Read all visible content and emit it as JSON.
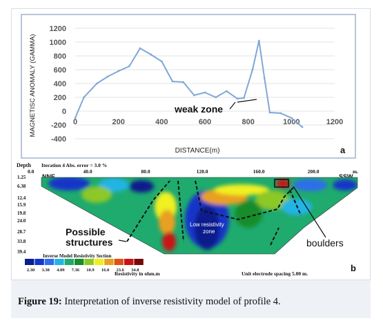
{
  "caption": {
    "label": "Figure 19:",
    "text": " Interpretation of inverse resistivity model of profile 4."
  },
  "chart_data": [
    {
      "type": "line",
      "panel_letter": "a",
      "ylabel": "MAGNETISC ANOMALY (GAMMA)",
      "xlabel": "DISTANCE(m)",
      "xlim": [
        0,
        1200
      ],
      "ylim": [
        -400,
        1200
      ],
      "xticks": [
        0,
        200,
        400,
        600,
        800,
        1000,
        1200
      ],
      "yticks": [
        1200,
        1000,
        800,
        600,
        400,
        200,
        0,
        -200,
        -400
      ],
      "grid": "horizontal",
      "line_color": "#7fa7d8",
      "x": [
        0,
        40,
        100,
        150,
        200,
        250,
        300,
        350,
        400,
        450,
        500,
        550,
        600,
        650,
        700,
        750,
        780,
        820,
        850,
        875,
        900,
        950,
        1000,
        1050
      ],
      "y": [
        -100,
        200,
        400,
        500,
        580,
        650,
        910,
        820,
        720,
        430,
        420,
        230,
        270,
        200,
        290,
        180,
        190,
        600,
        1020,
        480,
        -20,
        -30,
        -100,
        -230
      ],
      "annotations": [
        {
          "text": "weak zone",
          "x": 790,
          "y": 10
        }
      ]
    },
    {
      "type": "heatmap",
      "panel_letter": "b",
      "header_left": "Depth",
      "header_iteration": "Iteration 4 Abs. error = 3.0 %",
      "x_origin": "0.0",
      "x_ticks": [
        "40.0",
        "80.0",
        "120.0",
        "160.0",
        "200.0"
      ],
      "x_unit": "m.",
      "left_end": "NNE",
      "right_end": "SSW",
      "depth_ticks": [
        "1.25",
        "6.38",
        "12.4",
        "15.9",
        "19.8",
        "24.0",
        "28.7",
        "33.8",
        "39.4"
      ],
      "section_title": "Inverse Model Resistivity Section",
      "resistivity_label": "Resistivity in ohm.m",
      "electrode_spacing": "Unit electrode spacing 5.00 m.",
      "color_scale": {
        "values": [
          "2.30",
          "3.30",
          "4.09",
          "7.36",
          "10.9",
          "16.0",
          "23.6",
          "34.8"
        ],
        "colors": [
          "#0a1e8c",
          "#1636c8",
          "#2f6ee8",
          "#22b4e6",
          "#1faa6e",
          "#168c2c",
          "#8cc828",
          "#f0f020",
          "#e8a020",
          "#e05014",
          "#c81414",
          "#7a0808"
        ]
      },
      "annotations": [
        {
          "text": "Possible structures"
        },
        {
          "text": "Low resistivity zone"
        },
        {
          "text": "boulders"
        }
      ]
    }
  ]
}
